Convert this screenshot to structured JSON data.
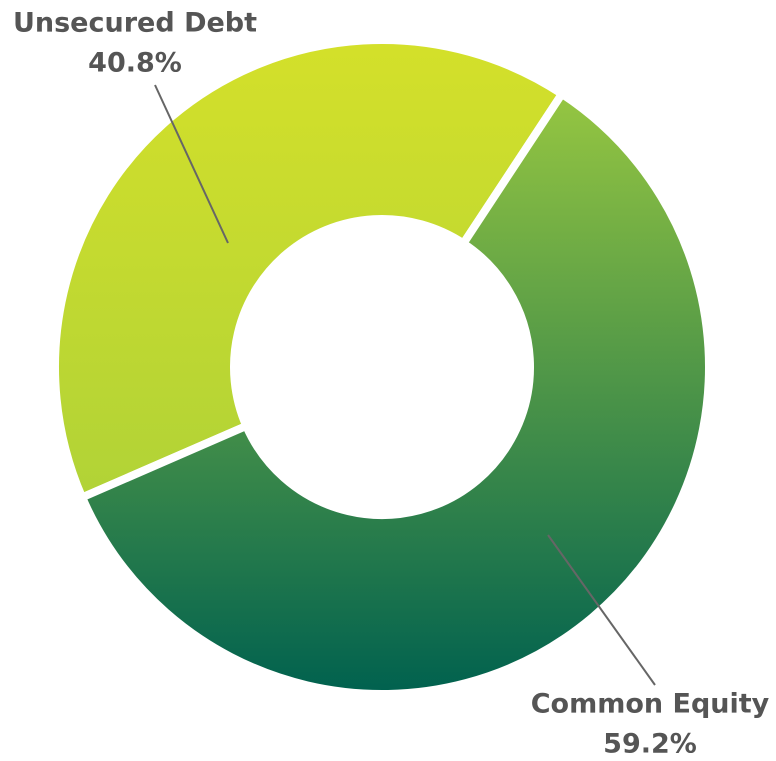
{
  "chart_data": {
    "type": "donut",
    "categories": [
      "Unsecured Debt",
      "Common Equity"
    ],
    "values": [
      40.8,
      59.2
    ],
    "value_labels": [
      "40.8%",
      "59.2%"
    ],
    "gradients": [
      [
        "#d4e02a",
        "#a2cd3c"
      ],
      [
        "#a3cf40",
        "#00614f"
      ]
    ],
    "label_color": "#555555"
  }
}
